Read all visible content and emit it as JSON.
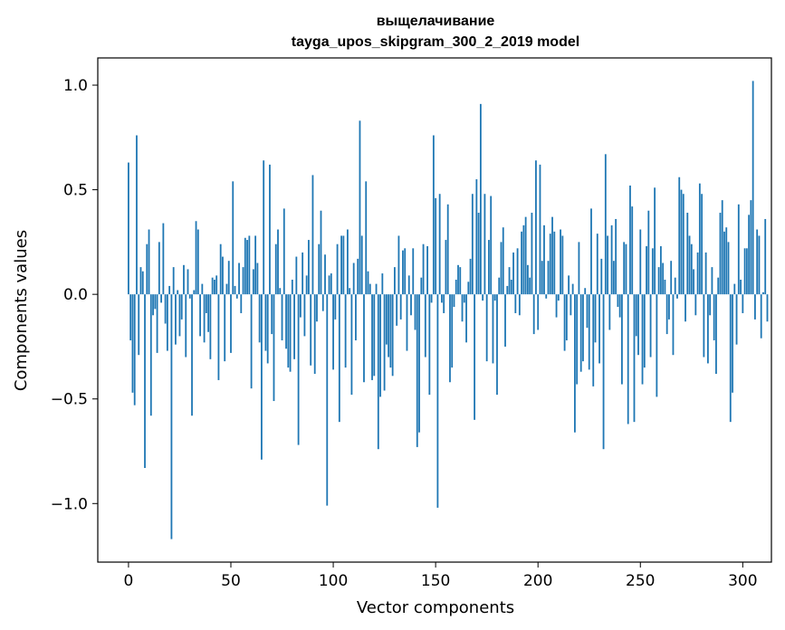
{
  "chart_data": {
    "type": "bar",
    "title": "выщелачивание",
    "subtitle": "tayga_upos_skipgram_300_2_2019 model",
    "xlabel": "Vector components",
    "ylabel": "Components values",
    "xlim": [
      -15,
      314
    ],
    "ylim": [
      -1.28,
      1.13
    ],
    "xticks": [
      0,
      50,
      100,
      150,
      200,
      250,
      300
    ],
    "xtick_labels": [
      "0",
      "50",
      "100",
      "150",
      "200",
      "250",
      "300"
    ],
    "yticks": [
      -1.0,
      -0.5,
      0.0,
      0.5,
      1.0
    ],
    "ytick_labels": [
      "−1.0",
      "−0.5",
      "0.0",
      "0.5",
      "1.0"
    ],
    "grid": false,
    "bar_color": "#1f77b4",
    "values": [
      0.63,
      -0.22,
      -0.47,
      -0.53,
      0.76,
      -0.29,
      0.13,
      0.11,
      -0.83,
      0.24,
      0.31,
      -0.58,
      -0.1,
      -0.07,
      -0.28,
      0.25,
      -0.04,
      0.34,
      -0.14,
      -0.27,
      0.04,
      -1.17,
      0.13,
      -0.24,
      0.02,
      -0.2,
      -0.12,
      0.14,
      -0.3,
      0.12,
      -0.02,
      -0.58,
      0.02,
      0.35,
      0.31,
      -0.2,
      0.05,
      -0.23,
      -0.09,
      -0.18,
      -0.31,
      0.08,
      0.07,
      0.09,
      -0.41,
      0.24,
      0.18,
      -0.32,
      0.05,
      0.16,
      -0.28,
      0.54,
      0.04,
      -0.02,
      0.15,
      -0.09,
      0.13,
      0.27,
      0.26,
      0.28,
      -0.45,
      0.12,
      0.28,
      0.15,
      -0.23,
      -0.79,
      0.64,
      -0.27,
      -0.33,
      0.62,
      -0.19,
      -0.51,
      0.24,
      0.31,
      0.03,
      -0.22,
      0.41,
      -0.26,
      -0.35,
      -0.37,
      0.07,
      -0.31,
      0.18,
      -0.72,
      -0.11,
      0.2,
      -0.2,
      0.09,
      0.26,
      -0.34,
      0.57,
      -0.38,
      -0.13,
      0.24,
      0.4,
      -0.08,
      0.19,
      -1.01,
      0.09,
      0.1,
      -0.36,
      -0.12,
      0.24,
      -0.61,
      0.28,
      0.28,
      -0.35,
      0.31,
      0.03,
      -0.48,
      0.15,
      -0.22,
      0.17,
      0.83,
      0.28,
      -0.42,
      0.54,
      0.11,
      0.05,
      -0.41,
      -0.39,
      0.05,
      -0.74,
      -0.49,
      0.1,
      -0.46,
      -0.24,
      -0.3,
      -0.35,
      -0.39,
      0.13,
      -0.15,
      0.28,
      -0.12,
      0.21,
      0.22,
      -0.27,
      0.09,
      -0.1,
      0.22,
      -0.17,
      -0.73,
      -0.66,
      0.08,
      0.24,
      -0.3,
      0.23,
      -0.48,
      -0.04,
      0.76,
      0.46,
      -1.02,
      0.48,
      -0.04,
      -0.09,
      0.26,
      0.43,
      -0.42,
      -0.35,
      -0.06,
      0.07,
      0.14,
      0.13,
      -0.13,
      -0.04,
      -0.23,
      0.06,
      0.17,
      0.48,
      -0.6,
      0.55,
      0.39,
      0.91,
      -0.03,
      0.48,
      -0.32,
      0.26,
      0.47,
      -0.33,
      -0.03,
      -0.48,
      0.08,
      0.25,
      0.32,
      -0.25,
      0.04,
      0.13,
      0.07,
      0.2,
      -0.09,
      0.22,
      -0.1,
      0.3,
      0.33,
      0.37,
      0.14,
      0.08,
      0.39,
      -0.19,
      0.64,
      -0.17,
      0.62,
      0.16,
      0.33,
      -0.02,
      0.16,
      0.29,
      0.37,
      0.3,
      -0.11,
      -0.03,
      0.31,
      0.28,
      -0.27,
      -0.22,
      0.09,
      -0.1,
      0.05,
      -0.66,
      -0.43,
      0.25,
      -0.37,
      -0.32,
      0.03,
      -0.16,
      -0.36,
      0.41,
      -0.44,
      -0.23,
      0.29,
      -0.33,
      0.17,
      -0.74,
      0.67,
      0.28,
      -0.17,
      0.33,
      0.16,
      0.36,
      -0.06,
      -0.11,
      -0.43,
      0.25,
      0.24,
      -0.62,
      0.52,
      0.42,
      -0.61,
      -0.2,
      -0.29,
      0.31,
      -0.43,
      -0.35,
      0.23,
      0.4,
      -0.3,
      0.22,
      0.51,
      -0.49,
      0.13,
      0.23,
      0.15,
      0.07,
      -0.19,
      -0.12,
      0.16,
      -0.29,
      0.08,
      -0.02,
      0.56,
      0.5,
      0.48,
      -0.13,
      0.39,
      0.28,
      0.24,
      0.12,
      -0.1,
      0.2,
      0.53,
      0.48,
      -0.3,
      0.2,
      -0.33,
      -0.1,
      0.13,
      -0.22,
      -0.38,
      0.08,
      0.39,
      0.45,
      0.3,
      0.32,
      0.25,
      -0.61,
      -0.47,
      0.05,
      -0.24,
      0.43,
      0.07,
      -0.09,
      0.22,
      0.22,
      0.38,
      0.45,
      1.02,
      -0.12,
      0.31,
      0.28,
      -0.21,
      0.01,
      0.36,
      -0.13
    ]
  }
}
